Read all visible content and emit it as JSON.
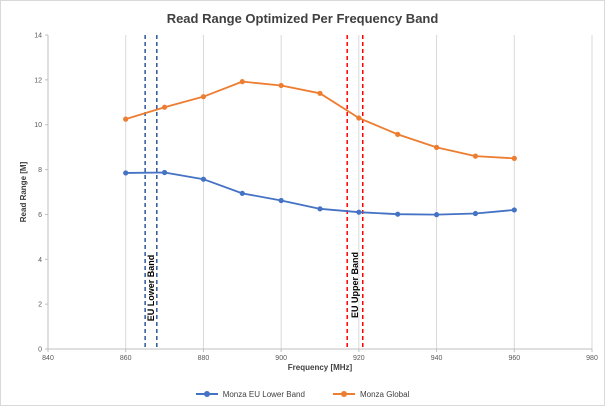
{
  "chart_data": {
    "type": "line",
    "title": "Read Range Optimized Per Frequency Band",
    "xlabel": "Frequency [MHz]",
    "ylabel": "Read Range [M]",
    "xlim": [
      840,
      980
    ],
    "ylim": [
      0,
      14
    ],
    "x_ticks": [
      840,
      860,
      880,
      900,
      920,
      940,
      960,
      980
    ],
    "y_ticks": [
      0,
      2,
      4,
      6,
      8,
      10,
      12,
      14
    ],
    "grid": "vertical",
    "legend_position": "bottom",
    "x": [
      860,
      870,
      880,
      890,
      900,
      910,
      920,
      930,
      940,
      950,
      960
    ],
    "series": [
      {
        "name": "Monza EU Lower Band",
        "color": "#4472c4",
        "values": [
          7.85,
          7.87,
          7.57,
          6.94,
          6.62,
          6.25,
          6.1,
          6.01,
          5.99,
          6.04,
          6.2
        ]
      },
      {
        "name": "Monza Global",
        "color": "#ed7d31",
        "values": [
          10.25,
          10.78,
          11.25,
          11.92,
          11.75,
          11.4,
          10.3,
          9.57,
          8.99,
          8.6,
          8.5
        ]
      }
    ],
    "bands": [
      {
        "label": "EU Lower Band",
        "color": "#2f5597",
        "edges": [
          865,
          868
        ]
      },
      {
        "label": "EU Upper Band",
        "color": "#ff0000",
        "edges": [
          917,
          921
        ]
      }
    ]
  }
}
